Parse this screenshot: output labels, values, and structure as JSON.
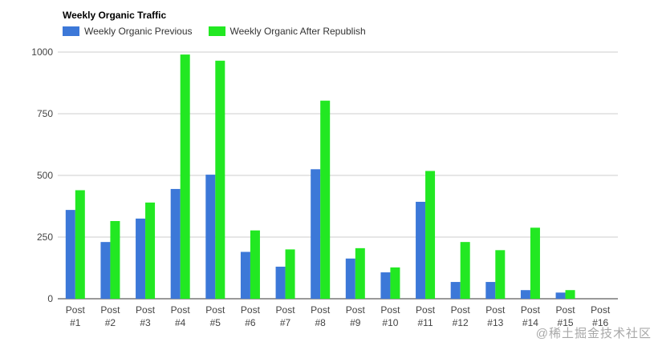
{
  "chart_data": {
    "type": "bar",
    "title": "Weekly Organic Traffic",
    "xlabel": "",
    "ylabel": "",
    "ylim": [
      0,
      1000
    ],
    "yticks": [
      "0",
      "250",
      "500",
      "750",
      "1000"
    ],
    "grid": true,
    "legend_position": "top-left",
    "categories": [
      [
        "Post",
        "#1"
      ],
      [
        "Post",
        "#2"
      ],
      [
        "Post",
        "#3"
      ],
      [
        "Post",
        "#4"
      ],
      [
        "Post",
        "#5"
      ],
      [
        "Post",
        "#6"
      ],
      [
        "Post",
        "#7"
      ],
      [
        "Post",
        "#8"
      ],
      [
        "Post",
        "#9"
      ],
      [
        "Post",
        "#10"
      ],
      [
        "Post",
        "#11"
      ],
      [
        "Post",
        "#12"
      ],
      [
        "Post",
        "#13"
      ],
      [
        "Post",
        "#14"
      ],
      [
        "Post",
        "#15"
      ],
      [
        "Post",
        "#16"
      ]
    ],
    "series": [
      {
        "name": "Weekly Organic Previous",
        "color": "#3c78d8",
        "values": [
          360,
          230,
          325,
          445,
          503,
          190,
          130,
          525,
          163,
          107,
          393,
          68,
          68,
          35,
          25,
          0
        ]
      },
      {
        "name": "Weekly Organic After Republish",
        "color": "#22e822",
        "values": [
          440,
          315,
          390,
          990,
          965,
          277,
          200,
          803,
          205,
          127,
          518,
          230,
          197,
          288,
          35,
          0
        ]
      }
    ]
  },
  "watermark": "@稀土掘金技术社区"
}
